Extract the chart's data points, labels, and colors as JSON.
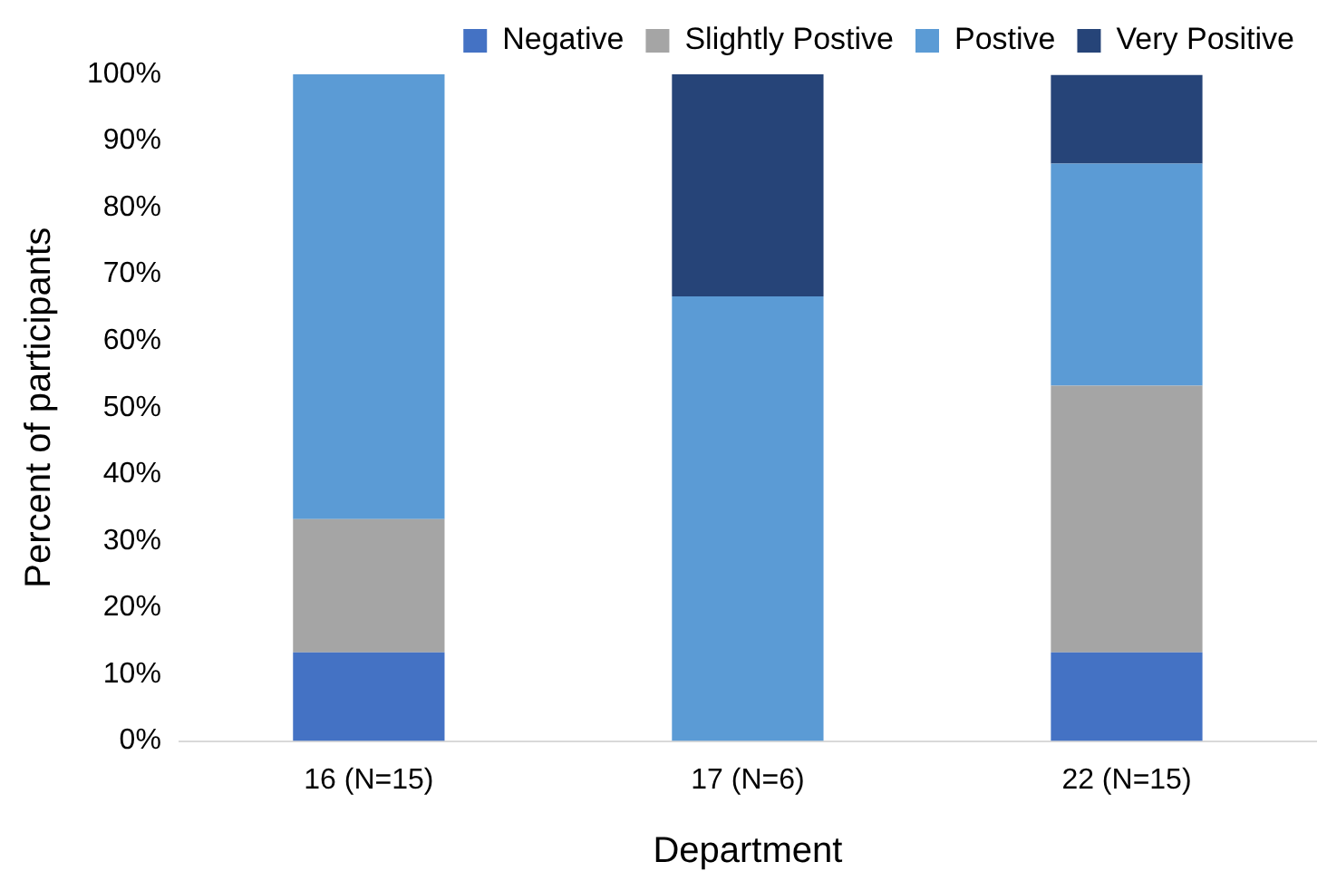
{
  "chart_data": {
    "type": "bar",
    "stacked": true,
    "xlabel": "Department",
    "ylabel": "Percent of participants",
    "categories": [
      "16 (N=15)",
      "17 (N=6)",
      "22 (N=15)"
    ],
    "series": [
      {
        "name": "Negative",
        "color": "#4472c4",
        "values": [
          13.3,
          0,
          13.3
        ]
      },
      {
        "name": "Slightly Postive",
        "color": "#a5a5a5",
        "values": [
          20,
          0,
          40
        ]
      },
      {
        "name": "Postive",
        "color": "#5b9bd5",
        "values": [
          66.7,
          66.7,
          33.3
        ]
      },
      {
        "name": "Very Positive",
        "color": "#264478",
        "values": [
          0,
          33.3,
          13.3
        ]
      }
    ],
    "ylim": [
      0,
      100
    ],
    "yticks": [
      {
        "value": 0,
        "label": "0%"
      },
      {
        "value": 10,
        "label": "10%"
      },
      {
        "value": 20,
        "label": "20%"
      },
      {
        "value": 30,
        "label": "30%"
      },
      {
        "value": 40,
        "label": "40%"
      },
      {
        "value": 50,
        "label": "50%"
      },
      {
        "value": 60,
        "label": "60%"
      },
      {
        "value": 70,
        "label": "70%"
      },
      {
        "value": 80,
        "label": "80%"
      },
      {
        "value": 90,
        "label": "90%"
      },
      {
        "value": 100,
        "label": "100%"
      }
    ],
    "grid": false,
    "legend": "top right"
  }
}
